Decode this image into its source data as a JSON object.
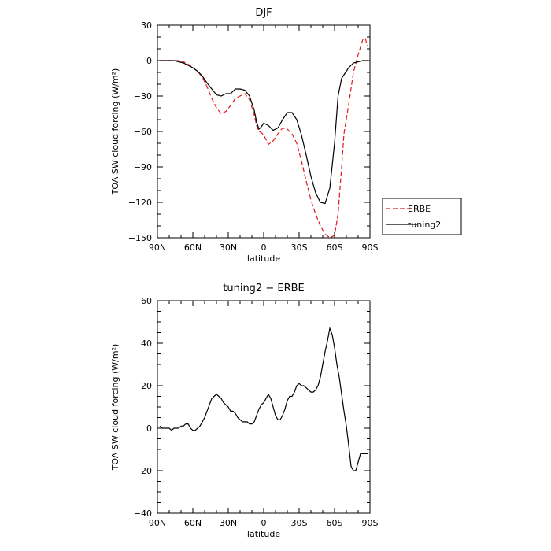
{
  "chart_data": [
    {
      "type": "line",
      "title": "DJF",
      "xlabel": "latitude",
      "ylabel": "TOA SW cloud forcing (W/m²)",
      "xlim": [
        90,
        -90
      ],
      "ylim": [
        -150,
        30
      ],
      "xticks": [
        90,
        60,
        30,
        0,
        -30,
        -60,
        -90
      ],
      "xtick_labels": [
        "90N",
        "60N",
        "30N",
        "0",
        "30S",
        "60S",
        "90S"
      ],
      "yticks": [
        30,
        0,
        -30,
        -60,
        -90,
        -120,
        -150
      ],
      "ytick_labels": [
        "30",
        "0",
        "−30",
        "−60",
        "−90",
        "−120",
        "−150"
      ],
      "legend_position": "outside-right",
      "series": [
        {
          "name": "ERBE",
          "color": "#e0191c",
          "dash": "dashed",
          "x": [
            88,
            84,
            80,
            76,
            72,
            68,
            64,
            60,
            56,
            52,
            48,
            44,
            40,
            36,
            32,
            28,
            24,
            20,
            16,
            12,
            8,
            6,
            4,
            2,
            0,
            -4,
            -8,
            -12,
            -16,
            -20,
            -24,
            -28,
            -32,
            -36,
            -40,
            -44,
            -48,
            -52,
            -56,
            -60,
            -63,
            -66,
            -68,
            -72,
            -76,
            -80,
            -84,
            -86,
            -88
          ],
          "y": [
            0,
            0,
            0,
            0,
            0,
            -1,
            -3,
            -6,
            -9,
            -14,
            -22,
            -32,
            -40,
            -45,
            -43,
            -38,
            -32,
            -30,
            -28,
            -33,
            -46,
            -55,
            -60,
            -61,
            -63,
            -71,
            -68,
            -62,
            -57,
            -58,
            -62,
            -70,
            -85,
            -102,
            -118,
            -130,
            -140,
            -147,
            -150,
            -148,
            -130,
            -90,
            -62,
            -37,
            -10,
            5,
            18,
            19,
            12
          ]
        },
        {
          "name": "tuning2",
          "color": "#000000",
          "dash": "solid",
          "x": [
            88,
            84,
            80,
            76,
            72,
            68,
            64,
            60,
            56,
            52,
            48,
            44,
            40,
            36,
            32,
            28,
            24,
            20,
            16,
            12,
            8,
            6,
            4,
            2,
            0,
            -4,
            -8,
            -12,
            -16,
            -20,
            -24,
            -28,
            -32,
            -36,
            -40,
            -44,
            -48,
            -52,
            -56,
            -60,
            -63,
            -66,
            -68,
            -72,
            -76,
            -80,
            -84,
            -86,
            -88
          ],
          "y": [
            0,
            0,
            0,
            0,
            -1,
            -2,
            -4,
            -6,
            -9,
            -13,
            -19,
            -24,
            -29,
            -30,
            -28,
            -28,
            -24,
            -24,
            -25,
            -30,
            -42,
            -52,
            -58,
            -56,
            -53,
            -55,
            -59,
            -57,
            -50,
            -44,
            -44,
            -50,
            -63,
            -80,
            -98,
            -112,
            -120,
            -121,
            -108,
            -70,
            -30,
            -15,
            -12,
            -6,
            -2,
            -1,
            0,
            0,
            0
          ]
        }
      ]
    },
    {
      "type": "line",
      "title": "tuning2 − ERBE",
      "xlabel": "latitude",
      "ylabel": "TOA SW cloud forcing (W/m²)",
      "xlim": [
        90,
        -90
      ],
      "ylim": [
        -40,
        60
      ],
      "xticks": [
        90,
        60,
        30,
        0,
        -30,
        -60,
        -90
      ],
      "xtick_labels": [
        "90N",
        "60N",
        "30N",
        "0",
        "30S",
        "60S",
        "90S"
      ],
      "yticks": [
        60,
        40,
        20,
        0,
        -20,
        -40
      ],
      "ytick_labels": [
        "60",
        "40",
        "20",
        "0",
        "−20",
        "−40"
      ],
      "series": [
        {
          "name": "",
          "color": "#000000",
          "dash": "solid",
          "x": [
            88,
            86,
            84,
            82,
            80,
            78,
            76,
            74,
            72,
            70,
            68,
            66,
            64,
            62,
            60,
            58,
            56,
            54,
            52,
            50,
            48,
            46,
            44,
            42,
            40,
            38,
            36,
            34,
            32,
            30,
            28,
            26,
            24,
            22,
            20,
            18,
            16,
            14,
            12,
            10,
            8,
            6,
            4,
            2,
            0,
            -2,
            -4,
            -6,
            -8,
            -10,
            -12,
            -14,
            -16,
            -18,
            -20,
            -22,
            -24,
            -26,
            -28,
            -30,
            -32,
            -34,
            -36,
            -38,
            -40,
            -42,
            -44,
            -46,
            -48,
            -50,
            -52,
            -54,
            -56,
            -58,
            -60,
            -62,
            -64,
            -66,
            -68,
            -70,
            -72,
            -74,
            -76,
            -78,
            -80,
            -82,
            -84,
            -86,
            -88
          ],
          "y": [
            1,
            0,
            0,
            0,
            0,
            -1,
            0,
            0,
            0,
            1,
            1,
            2,
            2,
            0,
            -1,
            -1,
            0,
            1,
            3,
            5,
            8,
            11,
            14,
            15,
            16,
            15,
            14,
            12,
            11,
            10,
            8,
            8,
            7,
            5,
            4,
            3,
            3,
            3,
            2,
            2,
            3,
            6,
            9,
            11,
            12,
            14,
            16,
            14,
            10,
            6,
            4,
            4,
            6,
            9,
            13,
            15,
            15,
            17,
            20,
            21,
            20,
            20,
            19,
            18,
            17,
            17,
            18,
            20,
            24,
            30,
            36,
            41,
            47,
            44,
            38,
            30,
            24,
            16,
            8,
            1,
            -8,
            -18,
            -20,
            -20,
            -16,
            -12,
            -12,
            -12,
            -12
          ]
        }
      ]
    }
  ]
}
